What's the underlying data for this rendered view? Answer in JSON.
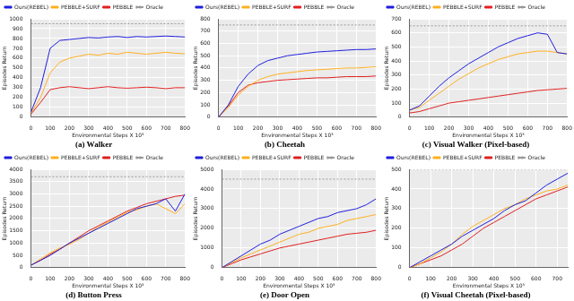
{
  "chart_data": [
    {
      "type": "line",
      "title": "(a) Walker",
      "x_label": "Environmental Steps X 10³",
      "y_label": "Episodes Return",
      "x": [
        0,
        50,
        100,
        150,
        200,
        250,
        300,
        350,
        400,
        450,
        500,
        550,
        600,
        650,
        700,
        750,
        800
      ],
      "xlim": [
        0,
        800
      ],
      "xticks": [
        0,
        100,
        200,
        300,
        400,
        500,
        600,
        700,
        800
      ],
      "ylim": [
        0,
        1000
      ],
      "yticks": [
        0,
        100,
        200,
        300,
        400,
        500,
        600,
        700,
        800,
        900,
        1000
      ],
      "grid": true,
      "legend": "upper left",
      "series": [
        {
          "name": "Ours(REBEL)",
          "color": "#1f1fdd",
          "line_style": "solid",
          "values": [
            50,
            300,
            700,
            780,
            790,
            800,
            810,
            805,
            815,
            820,
            810,
            820,
            815,
            820,
            825,
            820,
            815
          ]
        },
        {
          "name": "PEBBLE+SURF",
          "color": "#ffb020",
          "line_style": "solid",
          "values": [
            40,
            200,
            450,
            560,
            600,
            620,
            640,
            630,
            650,
            640,
            660,
            650,
            640,
            650,
            660,
            650,
            645
          ]
        },
        {
          "name": "PEBBLE",
          "color": "#e02020",
          "line_style": "solid",
          "values": [
            30,
            150,
            280,
            300,
            310,
            300,
            290,
            300,
            310,
            300,
            295,
            300,
            305,
            300,
            290,
            300,
            300
          ]
        },
        {
          "name": "Oracle",
          "color": "#999999",
          "line_style": "dotted",
          "values": [
            950,
            950,
            950,
            950,
            950,
            950,
            950,
            950,
            950,
            950,
            950,
            950,
            950,
            950,
            950,
            950,
            950
          ]
        }
      ]
    },
    {
      "type": "line",
      "title": "(b) Cheetah",
      "x_label": "Environmental Steps X 10³",
      "y_label": "Episodes Return",
      "x": [
        0,
        50,
        100,
        150,
        200,
        250,
        300,
        350,
        400,
        450,
        500,
        550,
        600,
        650,
        700,
        750,
        800
      ],
      "xlim": [
        0,
        800
      ],
      "xticks": [
        0,
        100,
        200,
        300,
        400,
        500,
        600,
        700,
        800
      ],
      "ylim": [
        0,
        800
      ],
      "yticks": [
        0,
        100,
        200,
        300,
        400,
        500,
        600,
        700,
        800
      ],
      "grid": true,
      "legend": "upper left",
      "series": [
        {
          "name": "Ours(REBEL)",
          "color": "#1f1fdd",
          "line_style": "solid",
          "values": [
            0,
            100,
            250,
            350,
            420,
            460,
            480,
            500,
            510,
            520,
            530,
            535,
            540,
            545,
            550,
            550,
            555
          ]
        },
        {
          "name": "PEBBLE+SURF",
          "color": "#ffb020",
          "line_style": "solid",
          "values": [
            0,
            80,
            180,
            250,
            300,
            330,
            350,
            360,
            370,
            380,
            385,
            390,
            395,
            400,
            400,
            405,
            410
          ]
        },
        {
          "name": "PEBBLE",
          "color": "#e02020",
          "line_style": "solid",
          "values": [
            0,
            90,
            200,
            260,
            280,
            290,
            300,
            305,
            310,
            315,
            320,
            320,
            325,
            330,
            330,
            330,
            335
          ]
        },
        {
          "name": "Oracle",
          "color": "#999999",
          "line_style": "dotted",
          "values": [
            750,
            750,
            750,
            750,
            750,
            750,
            750,
            750,
            750,
            750,
            750,
            750,
            750,
            750,
            750,
            750,
            750
          ]
        }
      ]
    },
    {
      "type": "line",
      "title": "(c) Visual Walker (Pixel-based)",
      "x_label": "Environmental Steps X 10³",
      "y_label": "Episodes Return",
      "x": [
        0,
        50,
        100,
        150,
        200,
        250,
        300,
        350,
        400,
        450,
        500,
        550,
        600,
        650,
        700,
        750,
        800
      ],
      "xlim": [
        0,
        800
      ],
      "xticks": [
        0,
        100,
        200,
        300,
        400,
        500,
        600,
        700,
        800
      ],
      "ylim": [
        0,
        700
      ],
      "yticks": [
        0,
        100,
        200,
        300,
        400,
        500,
        600,
        700
      ],
      "grid": true,
      "legend": "upper left",
      "series": [
        {
          "name": "Ours(REBEL)",
          "color": "#1f1fdd",
          "line_style": "solid",
          "values": [
            50,
            80,
            150,
            220,
            280,
            330,
            380,
            420,
            460,
            500,
            530,
            560,
            580,
            600,
            590,
            460,
            450
          ]
        },
        {
          "name": "PEBBLE+SURF",
          "color": "#ffb020",
          "line_style": "solid",
          "values": [
            50,
            70,
            120,
            170,
            220,
            270,
            310,
            350,
            380,
            410,
            430,
            450,
            460,
            470,
            470,
            460,
            450
          ]
        },
        {
          "name": "PEBBLE",
          "color": "#e02020",
          "line_style": "solid",
          "values": [
            30,
            40,
            60,
            80,
            100,
            110,
            120,
            130,
            140,
            150,
            160,
            170,
            180,
            190,
            195,
            200,
            205
          ]
        },
        {
          "name": "Oracle",
          "color": "#999999",
          "line_style": "dotted",
          "values": [
            650,
            650,
            650,
            650,
            650,
            650,
            650,
            650,
            650,
            650,
            650,
            650,
            650,
            650,
            650,
            650,
            650
          ]
        }
      ]
    },
    {
      "type": "line",
      "title": "(d) Button Press",
      "x_label": "Environmental Steps X 10³",
      "y_label": "Episodes Return",
      "x": [
        0,
        50,
        100,
        150,
        200,
        250,
        300,
        350,
        400,
        450,
        500,
        550,
        600,
        650,
        700,
        750,
        800
      ],
      "xlim": [
        0,
        800
      ],
      "xticks": [
        0,
        100,
        200,
        300,
        400,
        500,
        600,
        700,
        800
      ],
      "ylim": [
        0,
        4000
      ],
      "yticks": [
        0,
        500,
        1000,
        1500,
        2000,
        2500,
        3000,
        3500,
        4000
      ],
      "grid": true,
      "legend": "upper left",
      "series": [
        {
          "name": "Ours(REBEL)",
          "color": "#1f1fdd",
          "line_style": "solid",
          "values": [
            100,
            300,
            500,
            750,
            1000,
            1200,
            1400,
            1600,
            1800,
            2000,
            2200,
            2400,
            2500,
            2600,
            2800,
            2300,
            3000
          ]
        },
        {
          "name": "PEBBLE+SURF",
          "color": "#ffb020",
          "line_style": "solid",
          "values": [
            100,
            350,
            600,
            800,
            950,
            1150,
            1400,
            1650,
            1850,
            2050,
            2250,
            2350,
            2500,
            2600,
            2400,
            2200,
            2600
          ]
        },
        {
          "name": "PEBBLE",
          "color": "#e02020",
          "line_style": "solid",
          "values": [
            100,
            300,
            550,
            750,
            1000,
            1250,
            1500,
            1700,
            1900,
            2100,
            2300,
            2450,
            2600,
            2700,
            2800,
            2900,
            2950
          ]
        },
        {
          "name": "Oracle",
          "color": "#999999",
          "line_style": "dotted",
          "values": [
            3700,
            3700,
            3700,
            3700,
            3700,
            3700,
            3700,
            3700,
            3700,
            3700,
            3700,
            3700,
            3700,
            3700,
            3700,
            3700,
            3700
          ]
        }
      ]
    },
    {
      "type": "line",
      "title": "(e) Door Open",
      "x_label": "Environmental Steps X 10³",
      "y_label": "Episodes Return",
      "x": [
        0,
        50,
        100,
        150,
        200,
        250,
        300,
        350,
        400,
        450,
        500,
        550,
        600,
        650,
        700,
        750,
        800
      ],
      "xlim": [
        0,
        800
      ],
      "xticks": [
        0,
        100,
        200,
        300,
        400,
        500,
        600,
        700,
        800
      ],
      "ylim": [
        0,
        5000
      ],
      "yticks": [
        0,
        1000,
        2000,
        3000,
        4000,
        5000
      ],
      "grid": true,
      "legend": "upper left",
      "series": [
        {
          "name": "Ours(REBEL)",
          "color": "#1f1fdd",
          "line_style": "solid",
          "values": [
            0,
            300,
            600,
            900,
            1200,
            1400,
            1700,
            1900,
            2100,
            2300,
            2500,
            2600,
            2800,
            2900,
            3000,
            3200,
            3500
          ]
        },
        {
          "name": "PEBBLE+SURF",
          "color": "#ffb020",
          "line_style": "solid",
          "values": [
            0,
            250,
            500,
            700,
            900,
            1100,
            1300,
            1500,
            1700,
            1800,
            2000,
            2100,
            2200,
            2400,
            2500,
            2600,
            2700
          ]
        },
        {
          "name": "PEBBLE",
          "color": "#e02020",
          "line_style": "solid",
          "values": [
            0,
            200,
            400,
            550,
            700,
            850,
            1000,
            1100,
            1200,
            1300,
            1400,
            1500,
            1600,
            1700,
            1750,
            1800,
            1900
          ]
        },
        {
          "name": "Oracle",
          "color": "#999999",
          "line_style": "dotted",
          "values": [
            4500,
            4500,
            4500,
            4500,
            4500,
            4500,
            4500,
            4500,
            4500,
            4500,
            4500,
            4500,
            4500,
            4500,
            4500,
            4500,
            4500
          ]
        }
      ]
    },
    {
      "type": "line",
      "title": "(f) Visual Cheetah (Pixel-based)",
      "x_label": "Environmental Steps X 10³",
      "y_label": "Episodes Return",
      "x": [
        0,
        50,
        100,
        150,
        200,
        250,
        300,
        350,
        400,
        450,
        500,
        550,
        600,
        650,
        700,
        750
      ],
      "xlim": [
        0,
        750
      ],
      "xticks": [
        0,
        100,
        200,
        300,
        400,
        500,
        600,
        700
      ],
      "ylim": [
        0,
        500
      ],
      "yticks": [
        0,
        100,
        200,
        300,
        400,
        500
      ],
      "grid": true,
      "legend": "upper left",
      "series": [
        {
          "name": "Ours(REBEL)",
          "color": "#1f1fdd",
          "line_style": "solid",
          "values": [
            0,
            30,
            60,
            90,
            120,
            160,
            190,
            220,
            250,
            290,
            320,
            340,
            380,
            420,
            450,
            480
          ]
        },
        {
          "name": "PEBBLE+SURF",
          "color": "#ffb020",
          "line_style": "solid",
          "values": [
            0,
            20,
            50,
            80,
            120,
            170,
            210,
            240,
            270,
            300,
            320,
            350,
            370,
            390,
            400,
            420
          ]
        },
        {
          "name": "PEBBLE",
          "color": "#e02020",
          "line_style": "solid",
          "values": [
            0,
            20,
            40,
            60,
            90,
            120,
            160,
            200,
            230,
            260,
            290,
            320,
            350,
            370,
            390,
            410
          ]
        },
        {
          "name": "Oracle",
          "color": "#999999",
          "line_style": "dotted",
          "values": [
            500,
            500,
            500,
            500,
            500,
            500,
            500,
            500,
            500,
            500,
            500,
            500,
            500,
            500,
            500,
            500
          ]
        }
      ]
    }
  ]
}
